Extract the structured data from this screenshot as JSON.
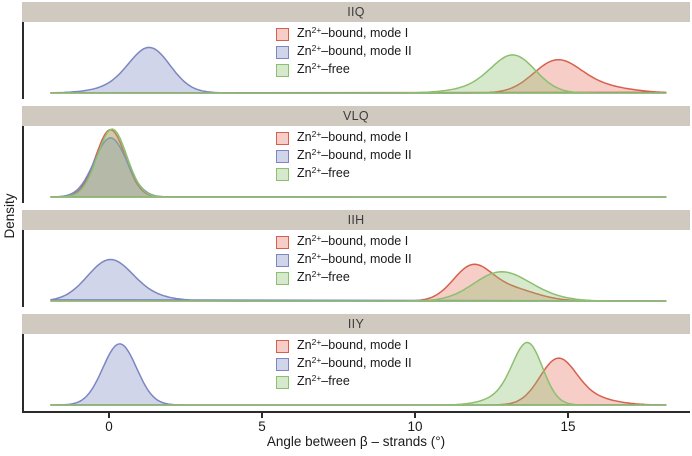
{
  "colors": {
    "mode1_stroke": "#d6604d",
    "mode1_fill": "rgba(229,115,94,0.35)",
    "mode2_stroke": "#7b86c2",
    "mode2_fill": "rgba(123,134,194,0.35)",
    "free_stroke": "#8cbf6f",
    "free_fill": "rgba(140,191,111,0.35)",
    "strip_bg": "#d0c9c0",
    "axis": "#2b2b2b",
    "text": "#1a1a1a"
  },
  "legend": {
    "items": [
      {
        "pre": "Zn",
        "sup": "2+",
        "post": "–bound, mode I",
        "color_key": "mode1"
      },
      {
        "pre": "Zn",
        "sup": "2+",
        "post": "–bound, mode II",
        "color_key": "mode2"
      },
      {
        "pre": "Zn",
        "sup": "2+",
        "post": "–free",
        "color_key": "free"
      }
    ]
  },
  "chart_data": {
    "type": "area",
    "subtype": "faceted-density",
    "title": "",
    "xlabel": "Angle between β – strands (°)",
    "ylabel": "Density",
    "x_ticks": [
      "0",
      "5",
      "10",
      "15"
    ],
    "x_tick_values": [
      0,
      5,
      10,
      15
    ],
    "x_range": [
      -1.9,
      18.2
    ],
    "grid": false,
    "legend_position": "top-center-inside-each-facet",
    "facet_titles": [
      "IIQ",
      "VLQ",
      "IIH",
      "IIY"
    ],
    "series_names": [
      "Zn²⁺–bound, mode I",
      "Zn²⁺–bound, mode II",
      "Zn²⁺–free"
    ],
    "facets": [
      {
        "title": "IIQ",
        "series": [
          {
            "name": "Zn²⁺–bound, mode I",
            "color_key": "mode1",
            "peak_x": 14.7,
            "rel_peak_height": 0.49,
            "curve": [
              {
                "m": 14.6,
                "s": 0.75,
                "w": 1
              },
              {
                "m": 15.7,
                "s": 1.1,
                "w": 0.28
              }
            ]
          },
          {
            "name": "Zn²⁺–bound, mode II",
            "color_key": "mode2",
            "peak_x": 1.3,
            "rel_peak_height": 0.67,
            "curve": [
              {
                "m": 1.35,
                "s": 0.65,
                "w": 1
              },
              {
                "m": 0.9,
                "s": 1.0,
                "w": 0.25
              }
            ]
          },
          {
            "name": "Zn²⁺–free",
            "color_key": "free",
            "peak_x": 13.3,
            "rel_peak_height": 0.56,
            "curve": [
              {
                "m": 13.25,
                "s": 0.7,
                "w": 1
              },
              {
                "m": 12.5,
                "s": 1.0,
                "w": 0.22
              }
            ]
          }
        ]
      },
      {
        "title": "VLQ",
        "series": [
          {
            "name": "Zn²⁺–bound, mode I",
            "color_key": "mode1",
            "peak_x": 0.05,
            "rel_peak_height": 0.99,
            "curve": [
              {
                "m": 0.05,
                "s": 0.48,
                "w": 1
              }
            ]
          },
          {
            "name": "Zn²⁺–bound, mode II",
            "color_key": "mode2",
            "peak_x": 0.05,
            "rel_peak_height": 0.87,
            "curve": [
              {
                "m": 0.05,
                "s": 0.53,
                "w": 1
              }
            ]
          },
          {
            "name": "Zn²⁺–free",
            "color_key": "free",
            "peak_x": 0.1,
            "rel_peak_height": 1.0,
            "curve": [
              {
                "m": 0.1,
                "s": 0.48,
                "w": 1
              }
            ]
          }
        ]
      },
      {
        "title": "IIH",
        "series": [
          {
            "name": "Zn²⁺–bound, mode I",
            "color_key": "mode1",
            "peak_x": 11.9,
            "rel_peak_height": 0.54,
            "curve": [
              {
                "m": 11.85,
                "s": 0.62,
                "w": 1
              },
              {
                "m": 13.1,
                "s": 0.85,
                "w": 0.38
              }
            ]
          },
          {
            "name": "Zn²⁺–bound, mode II",
            "color_key": "mode2",
            "peak_x": 0.0,
            "rel_peak_height": 0.61,
            "curve": [
              {
                "m": 0.0,
                "s": 0.72,
                "w": 1
              },
              {
                "m": 0.7,
                "s": 1.0,
                "w": 0.18
              }
            ]
          },
          {
            "name": "Zn²⁺–free",
            "color_key": "free",
            "peak_x": 12.6,
            "rel_peak_height": 0.43,
            "curve": [
              {
                "m": 12.7,
                "s": 0.85,
                "w": 1
              },
              {
                "m": 13.7,
                "s": 0.9,
                "w": 0.28
              }
            ]
          }
        ]
      },
      {
        "title": "IIY",
        "series": [
          {
            "name": "Zn²⁺–bound, mode I",
            "color_key": "mode1",
            "peak_x": 14.7,
            "rel_peak_height": 0.69,
            "curve": [
              {
                "m": 14.65,
                "s": 0.58,
                "w": 1
              },
              {
                "m": 15.4,
                "s": 0.9,
                "w": 0.22
              }
            ]
          },
          {
            "name": "Zn²⁺–bound, mode II",
            "color_key": "mode2",
            "peak_x": 0.35,
            "rel_peak_height": 0.9,
            "curve": [
              {
                "m": 0.35,
                "s": 0.55,
                "w": 1
              }
            ]
          },
          {
            "name": "Zn²⁺–free",
            "color_key": "free",
            "peak_x": 13.7,
            "rel_peak_height": 0.92,
            "curve": [
              {
                "m": 13.7,
                "s": 0.48,
                "w": 1
              },
              {
                "m": 13.1,
                "s": 0.7,
                "w": 0.18
              }
            ]
          }
        ]
      }
    ]
  }
}
